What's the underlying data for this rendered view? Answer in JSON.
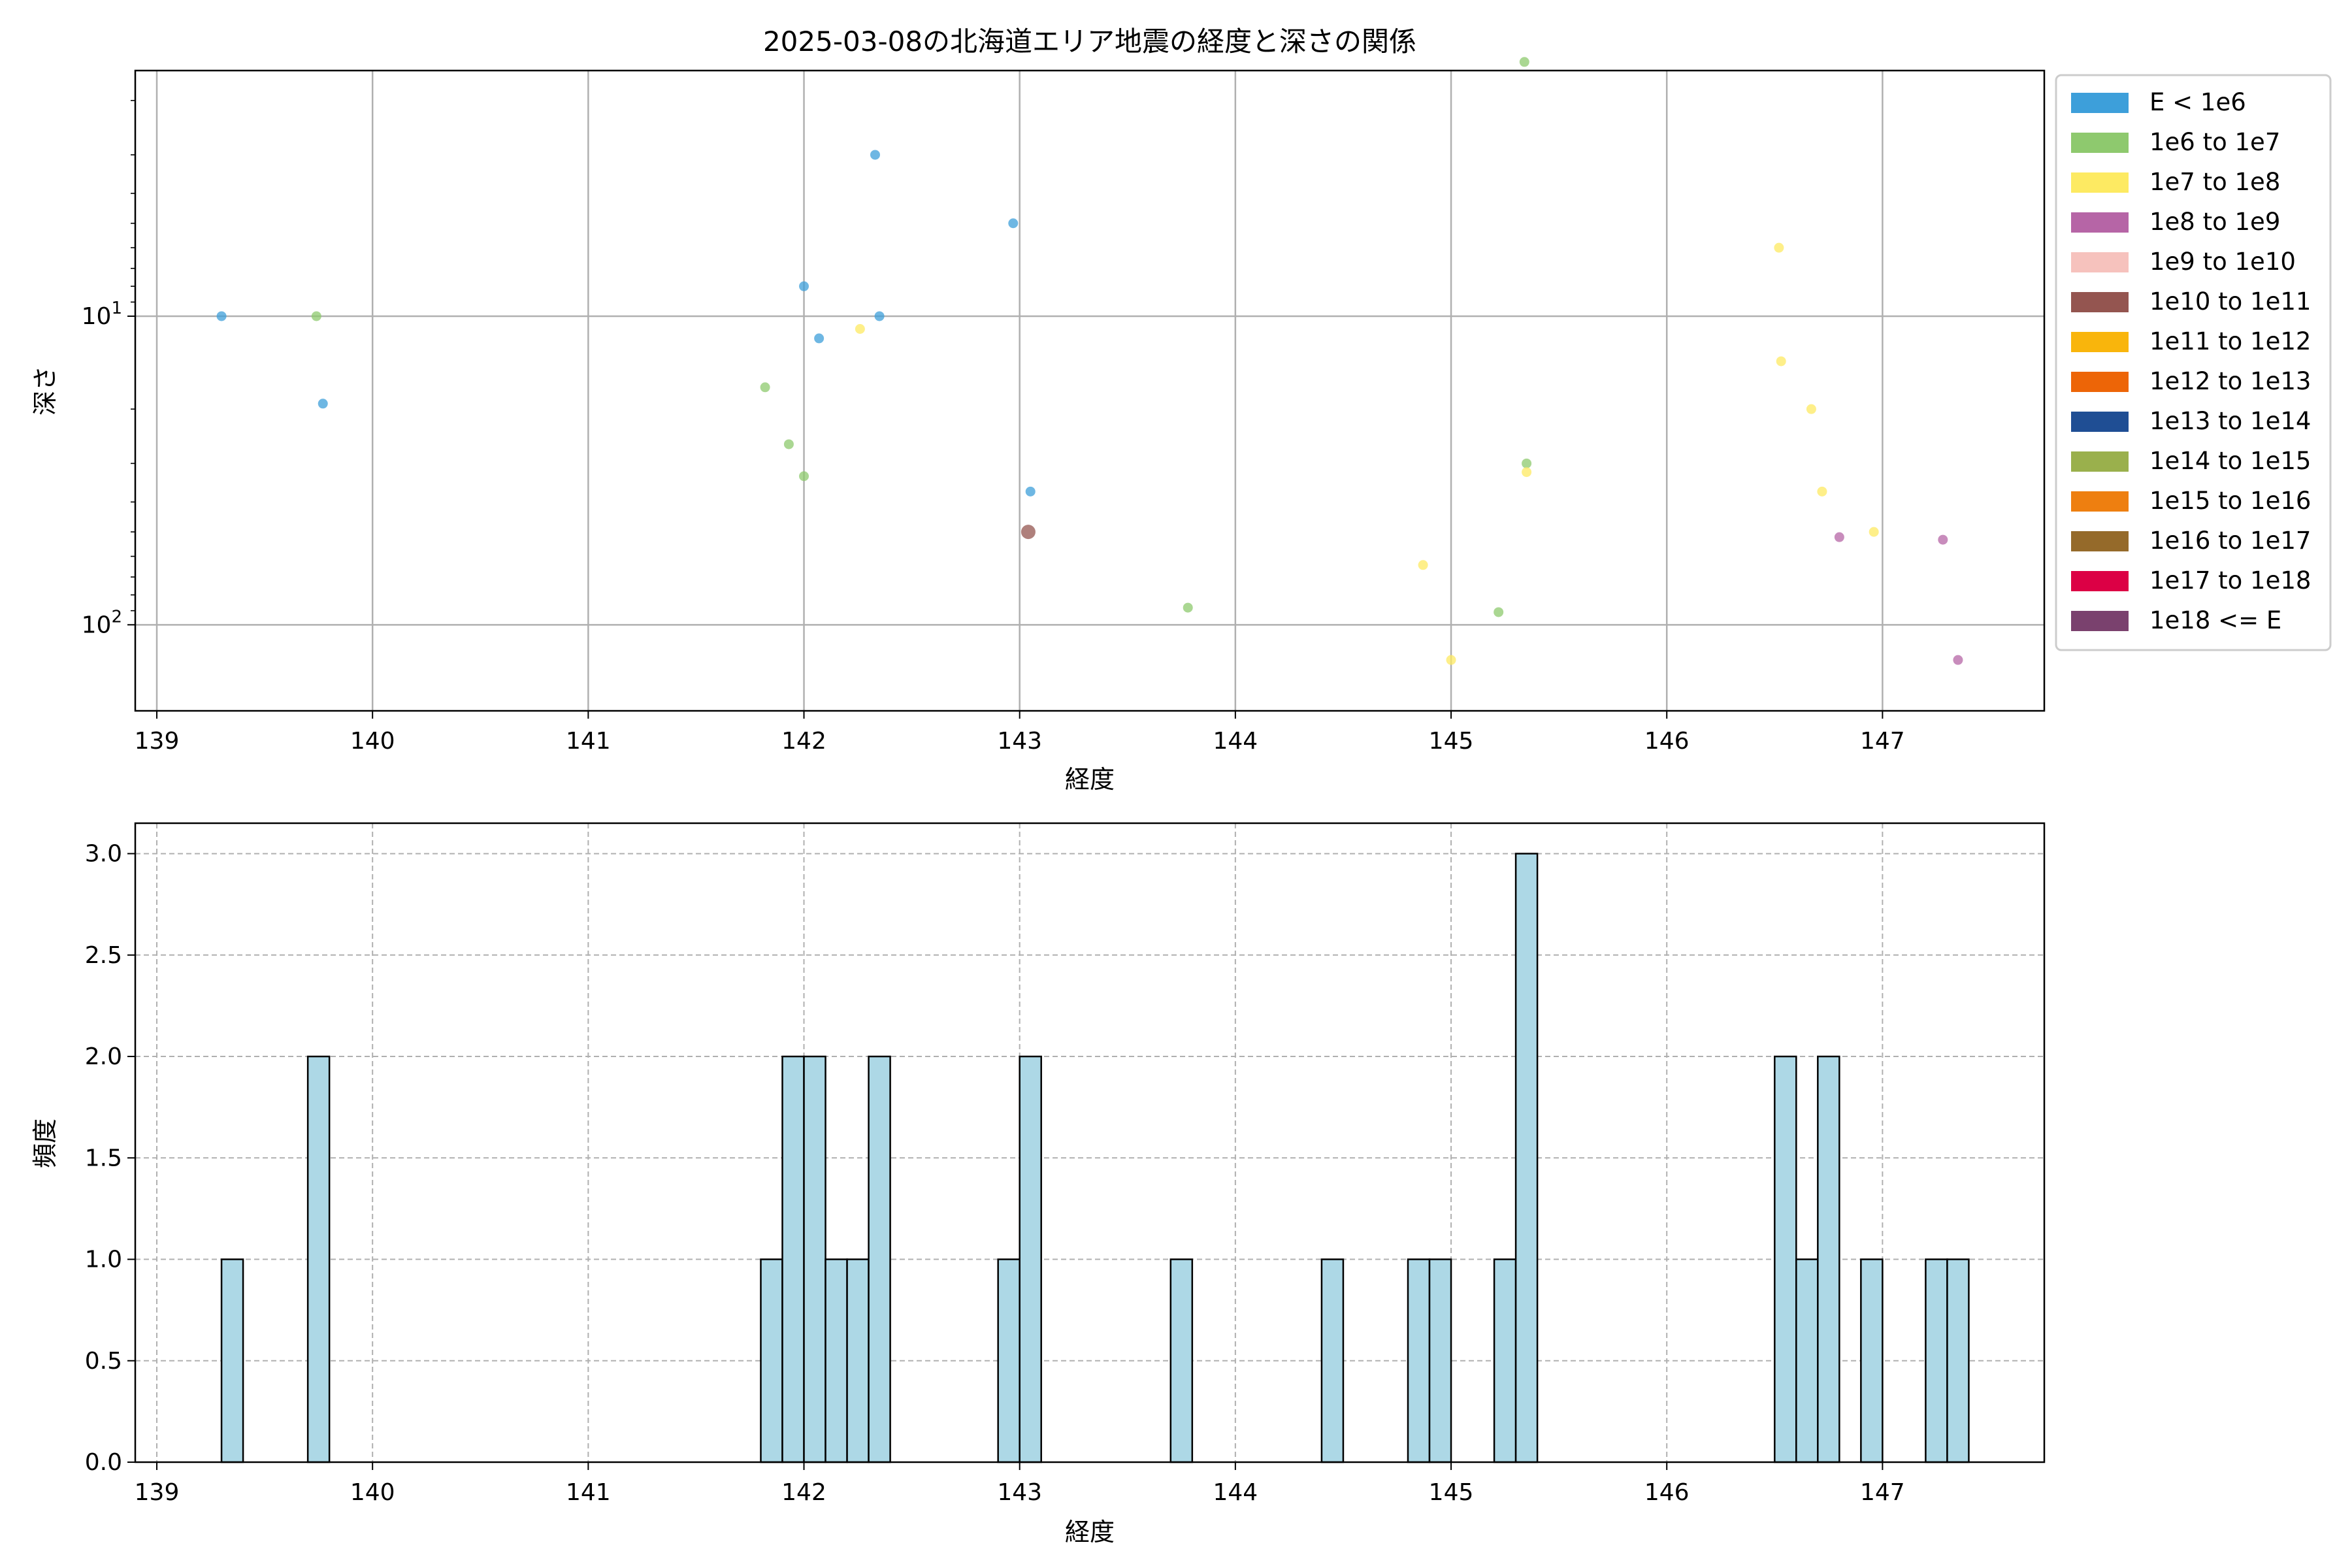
{
  "chart_data": [
    {
      "type": "scatter",
      "title": "2025-03-08の北海道エリア地震の経度と深さの関係",
      "xlabel": "経度",
      "ylabel": "深さ",
      "y_scale": "log",
      "y_inverted": true,
      "xlim": [
        138.9,
        147.75
      ],
      "ylim": [
        190,
        1.6
      ],
      "x_ticks": [
        "139",
        "140",
        "141",
        "142",
        "143",
        "144",
        "145",
        "146",
        "147"
      ],
      "y_ticks": [
        {
          "value": 10,
          "base": "10",
          "exp": "1"
        },
        {
          "value": 100,
          "base": "10",
          "exp": "2"
        }
      ],
      "grid": true,
      "legend_position": "outside-right",
      "legend": [
        {
          "label": "E < 1e6",
          "color": "#3d9fda"
        },
        {
          "label": "1e6 to 1e7",
          "color": "#8ec96e"
        },
        {
          "label": "1e7 to 1e8",
          "color": "#fdea62"
        },
        {
          "label": "1e8 to 1e9",
          "color": "#b665a6"
        },
        {
          "label": "1e9 to 1e10",
          "color": "#f6c2bd"
        },
        {
          "label": "1e10 to 1e11",
          "color": "#945550"
        },
        {
          "label": "1e11 to 1e12",
          "color": "#f9b50c"
        },
        {
          "label": "1e12 to 1e13",
          "color": "#ed6507"
        },
        {
          "label": "1e13 to 1e14",
          "color": "#1f4e94"
        },
        {
          "label": "1e14 to 1e15",
          "color": "#9ab04c"
        },
        {
          "label": "1e15 to 1e16",
          "color": "#ee7f10"
        },
        {
          "label": "1e16 to 1e17",
          "color": "#956a2a"
        },
        {
          "label": "1e17 to 1e18",
          "color": "#dc0045"
        },
        {
          "label": "1e18 <= E",
          "color": "#7a416e"
        }
      ],
      "points": [
        {
          "x": 139.3,
          "y": 10,
          "class": 0
        },
        {
          "x": 139.77,
          "y": 19.2,
          "class": 0
        },
        {
          "x": 142.0,
          "y": 8.0,
          "class": 0
        },
        {
          "x": 142.07,
          "y": 11.8,
          "class": 0
        },
        {
          "x": 142.33,
          "y": 3.0,
          "class": 0
        },
        {
          "x": 142.35,
          "y": 10,
          "class": 0
        },
        {
          "x": 142.97,
          "y": 5.0,
          "class": 0
        },
        {
          "x": 143.05,
          "y": 37,
          "class": 0
        },
        {
          "x": 139.74,
          "y": 10,
          "class": 1
        },
        {
          "x": 141.82,
          "y": 17.0,
          "class": 1
        },
        {
          "x": 141.93,
          "y": 26,
          "class": 1
        },
        {
          "x": 142.0,
          "y": 33,
          "class": 1
        },
        {
          "x": 143.78,
          "y": 88,
          "class": 1
        },
        {
          "x": 145.22,
          "y": 91,
          "class": 1
        },
        {
          "x": 145.34,
          "y": 1.5,
          "class": 1
        },
        {
          "x": 145.35,
          "y": 30,
          "class": 1
        },
        {
          "x": 142.26,
          "y": 11.0,
          "class": 2
        },
        {
          "x": 144.87,
          "y": 64,
          "class": 2
        },
        {
          "x": 145.0,
          "y": 130,
          "class": 2
        },
        {
          "x": 145.35,
          "y": 32,
          "class": 2
        },
        {
          "x": 146.52,
          "y": 6.0,
          "class": 2
        },
        {
          "x": 146.53,
          "y": 14.0,
          "class": 2
        },
        {
          "x": 146.67,
          "y": 20,
          "class": 2
        },
        {
          "x": 146.72,
          "y": 37,
          "class": 2
        },
        {
          "x": 146.96,
          "y": 50,
          "class": 2
        },
        {
          "x": 146.8,
          "y": 52,
          "class": 3
        },
        {
          "x": 147.28,
          "y": 53,
          "class": 3
        },
        {
          "x": 147.35,
          "y": 130,
          "class": 3
        },
        {
          "x": 143.04,
          "y": 50,
          "class": 5,
          "large": true
        }
      ]
    },
    {
      "type": "bar",
      "subtype": "histogram",
      "xlabel": "経度",
      "ylabel": "頻度",
      "xlim": [
        138.9,
        147.75
      ],
      "ylim": [
        0,
        3.15
      ],
      "x_ticks": [
        "139",
        "140",
        "141",
        "142",
        "143",
        "144",
        "145",
        "146",
        "147"
      ],
      "y_ticks": [
        "0.0",
        "0.5",
        "1.0",
        "1.5",
        "2.0",
        "2.5",
        "3.0"
      ],
      "grid": true,
      "bar_color": "#add8e6",
      "edge_color": "#000000",
      "bin_width": 0.1,
      "bins": [
        {
          "start": 139.3,
          "count": 1
        },
        {
          "start": 139.7,
          "count": 2
        },
        {
          "start": 141.8,
          "count": 1
        },
        {
          "start": 141.9,
          "count": 2
        },
        {
          "start": 142.0,
          "count": 2
        },
        {
          "start": 142.1,
          "count": 1
        },
        {
          "start": 142.2,
          "count": 1
        },
        {
          "start": 142.3,
          "count": 2
        },
        {
          "start": 142.9,
          "count": 1
        },
        {
          "start": 143.0,
          "count": 2
        },
        {
          "start": 143.7,
          "count": 1
        },
        {
          "start": 144.4,
          "count": 1
        },
        {
          "start": 144.8,
          "count": 1
        },
        {
          "start": 144.9,
          "count": 1
        },
        {
          "start": 145.2,
          "count": 1
        },
        {
          "start": 145.3,
          "count": 3
        },
        {
          "start": 146.5,
          "count": 2
        },
        {
          "start": 146.6,
          "count": 1
        },
        {
          "start": 146.7,
          "count": 2
        },
        {
          "start": 146.9,
          "count": 1
        },
        {
          "start": 147.2,
          "count": 1
        },
        {
          "start": 147.3,
          "count": 1
        }
      ]
    }
  ]
}
